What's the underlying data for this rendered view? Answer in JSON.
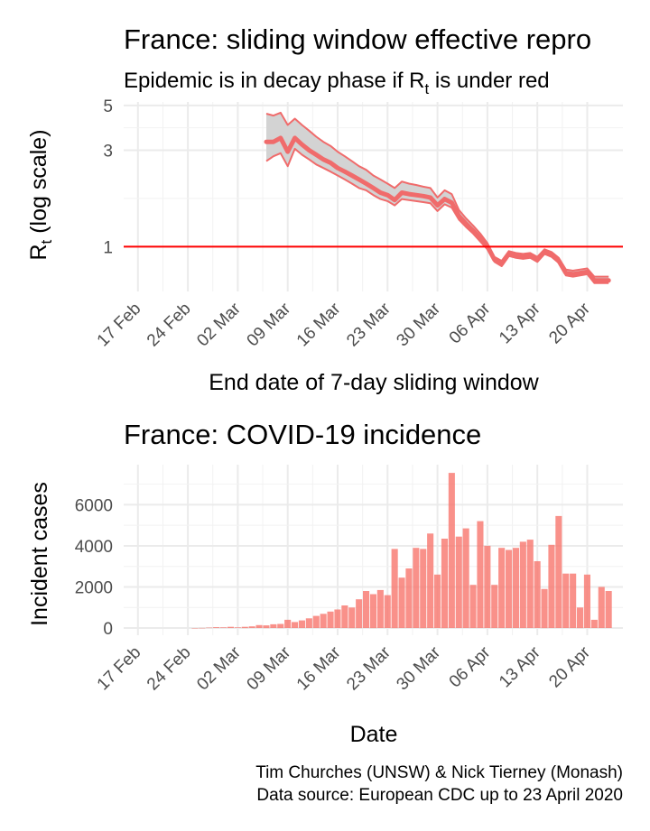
{
  "chart_data": [
    {
      "type": "area",
      "title": "France: sliding window effective repro",
      "subtitle": "Epidemic is in decay phase if R",
      "subtitle_subscript": "t",
      "subtitle_tail": "  is under red",
      "xlabel": "End date of 7-day sliding window",
      "ylabel": "R",
      "ylabel_subscript": "t",
      "ylabel_tail": " (log scale)",
      "y_scale": "log",
      "ylim": [
        0.6,
        5.2
      ],
      "yticks": [
        1,
        3,
        5
      ],
      "x_range": [
        "2020-02-15",
        "2020-04-25"
      ],
      "xticks": [
        {
          "date": "2020-02-17",
          "label": "17 Feb"
        },
        {
          "date": "2020-02-24",
          "label": "24 Feb"
        },
        {
          "date": "2020-03-02",
          "label": "02 Mar"
        },
        {
          "date": "2020-03-09",
          "label": "09 Mar"
        },
        {
          "date": "2020-03-16",
          "label": "16 Mar"
        },
        {
          "date": "2020-03-23",
          "label": "23 Mar"
        },
        {
          "date": "2020-03-30",
          "label": "30 Mar"
        },
        {
          "date": "2020-04-06",
          "label": "06 Apr"
        },
        {
          "date": "2020-04-13",
          "label": "13 Apr"
        },
        {
          "date": "2020-04-20",
          "label": "20 Apr"
        }
      ],
      "reference_line": {
        "y": 1,
        "color": "#ff0000"
      },
      "series_color": "#f06b6b",
      "band_color": "#d3d3d3",
      "x": [
        "2020-03-06",
        "2020-03-07",
        "2020-03-08",
        "2020-03-09",
        "2020-03-10",
        "2020-03-11",
        "2020-03-12",
        "2020-03-13",
        "2020-03-14",
        "2020-03-15",
        "2020-03-16",
        "2020-03-17",
        "2020-03-18",
        "2020-03-19",
        "2020-03-20",
        "2020-03-21",
        "2020-03-22",
        "2020-03-23",
        "2020-03-24",
        "2020-03-25",
        "2020-03-26",
        "2020-03-27",
        "2020-03-28",
        "2020-03-29",
        "2020-03-30",
        "2020-03-31",
        "2020-04-01",
        "2020-04-02",
        "2020-04-03",
        "2020-04-04",
        "2020-04-05",
        "2020-04-06",
        "2020-04-07",
        "2020-04-08",
        "2020-04-09",
        "2020-04-10",
        "2020-04-11",
        "2020-04-12",
        "2020-04-13",
        "2020-04-14",
        "2020-04-15",
        "2020-04-16",
        "2020-04-17",
        "2020-04-18",
        "2020-04-19",
        "2020-04-20",
        "2020-04-21",
        "2020-04-22",
        "2020-04-23"
      ],
      "mean": [
        3.3,
        3.3,
        3.45,
        2.95,
        3.45,
        3.2,
        3.0,
        2.85,
        2.7,
        2.6,
        2.45,
        2.35,
        2.25,
        2.15,
        2.05,
        1.95,
        1.85,
        1.8,
        1.7,
        1.85,
        1.82,
        1.8,
        1.78,
        1.75,
        1.6,
        1.72,
        1.65,
        1.42,
        1.3,
        1.2,
        1.1,
        1.0,
        0.86,
        0.82,
        0.92,
        0.9,
        0.89,
        0.9,
        0.86,
        0.94,
        0.91,
        0.85,
        0.74,
        0.73,
        0.74,
        0.75,
        0.68,
        0.68,
        0.68
      ],
      "lower": [
        2.65,
        2.8,
        2.9,
        2.5,
        3.05,
        2.85,
        2.7,
        2.55,
        2.45,
        2.35,
        2.25,
        2.15,
        2.05,
        1.95,
        1.9,
        1.8,
        1.72,
        1.68,
        1.6,
        1.72,
        1.7,
        1.68,
        1.66,
        1.64,
        1.5,
        1.62,
        1.56,
        1.36,
        1.25,
        1.16,
        1.06,
        0.97,
        0.84,
        0.8,
        0.9,
        0.88,
        0.87,
        0.88,
        0.84,
        0.92,
        0.89,
        0.83,
        0.72,
        0.71,
        0.72,
        0.73,
        0.66,
        0.66,
        0.66
      ],
      "upper": [
        4.55,
        4.45,
        4.6,
        4.0,
        4.3,
        4.0,
        3.75,
        3.5,
        3.3,
        3.15,
        2.95,
        2.8,
        2.65,
        2.5,
        2.4,
        2.25,
        2.15,
        2.05,
        1.95,
        2.1,
        2.05,
        2.02,
        1.98,
        1.95,
        1.75,
        1.9,
        1.82,
        1.52,
        1.38,
        1.27,
        1.16,
        1.04,
        0.89,
        0.85,
        0.95,
        0.93,
        0.92,
        0.93,
        0.89,
        0.97,
        0.94,
        0.88,
        0.77,
        0.76,
        0.77,
        0.78,
        0.71,
        0.71,
        0.71
      ]
    },
    {
      "type": "bar",
      "title": "France: COVID-19 incidence",
      "xlabel": "Date",
      "ylabel": "Incident cases",
      "ylim": [
        -350,
        7950
      ],
      "yticks": [
        0,
        2000,
        4000,
        6000
      ],
      "ytick_labels": [
        "0",
        "2000",
        "4000",
        "6000"
      ],
      "x_range": [
        "2020-02-15",
        "2020-04-25"
      ],
      "bar_color": "#f8766d",
      "xticks": [
        {
          "date": "2020-02-17",
          "label": "17 Feb"
        },
        {
          "date": "2020-02-24",
          "label": "24 Feb"
        },
        {
          "date": "2020-03-02",
          "label": "02 Mar"
        },
        {
          "date": "2020-03-09",
          "label": "09 Mar"
        },
        {
          "date": "2020-03-16",
          "label": "16 Mar"
        },
        {
          "date": "2020-03-23",
          "label": "23 Mar"
        },
        {
          "date": "2020-03-30",
          "label": "30 Mar"
        },
        {
          "date": "2020-04-06",
          "label": "06 Apr"
        },
        {
          "date": "2020-04-13",
          "label": "13 Apr"
        },
        {
          "date": "2020-04-20",
          "label": "20 Apr"
        }
      ],
      "x": [
        "2020-02-25",
        "2020-02-26",
        "2020-02-27",
        "2020-02-28",
        "2020-02-29",
        "2020-03-01",
        "2020-03-02",
        "2020-03-03",
        "2020-03-04",
        "2020-03-05",
        "2020-03-06",
        "2020-03-07",
        "2020-03-08",
        "2020-03-09",
        "2020-03-10",
        "2020-03-11",
        "2020-03-12",
        "2020-03-13",
        "2020-03-14",
        "2020-03-15",
        "2020-03-16",
        "2020-03-17",
        "2020-03-18",
        "2020-03-19",
        "2020-03-20",
        "2020-03-21",
        "2020-03-22",
        "2020-03-23",
        "2020-03-24",
        "2020-03-25",
        "2020-03-26",
        "2020-03-27",
        "2020-03-28",
        "2020-03-29",
        "2020-03-30",
        "2020-03-31",
        "2020-04-01",
        "2020-04-02",
        "2020-04-03",
        "2020-04-04",
        "2020-04-05",
        "2020-04-06",
        "2020-04-07",
        "2020-04-08",
        "2020-04-09",
        "2020-04-10",
        "2020-04-11",
        "2020-04-12",
        "2020-04-13",
        "2020-04-14",
        "2020-04-15",
        "2020-04-16",
        "2020-04-17",
        "2020-04-18",
        "2020-04-19",
        "2020-04-20",
        "2020-04-21",
        "2020-04-22",
        "2020-04-23"
      ],
      "values": [
        2,
        4,
        20,
        40,
        30,
        57,
        30,
        60,
        80,
        140,
        130,
        180,
        200,
        400,
        290,
        370,
        470,
        590,
        690,
        800,
        900,
        1100,
        1000,
        1400,
        1800,
        1650,
        1850,
        1600,
        3850,
        2450,
        2900,
        3900,
        3850,
        4600,
        2600,
        4350,
        7550,
        4450,
        4850,
        2100,
        5200,
        4000,
        2100,
        3900,
        3800,
        3900,
        4200,
        4300,
        3250,
        1900,
        4050,
        5450,
        2650,
        2650,
        1000,
        2600,
        400,
        2000,
        1800
      ]
    }
  ],
  "caption": {
    "line1": "Tim Churches (UNSW) & Nick Tierney (Monash)",
    "line2": "Data source: European CDC up to 23 April 2020"
  }
}
